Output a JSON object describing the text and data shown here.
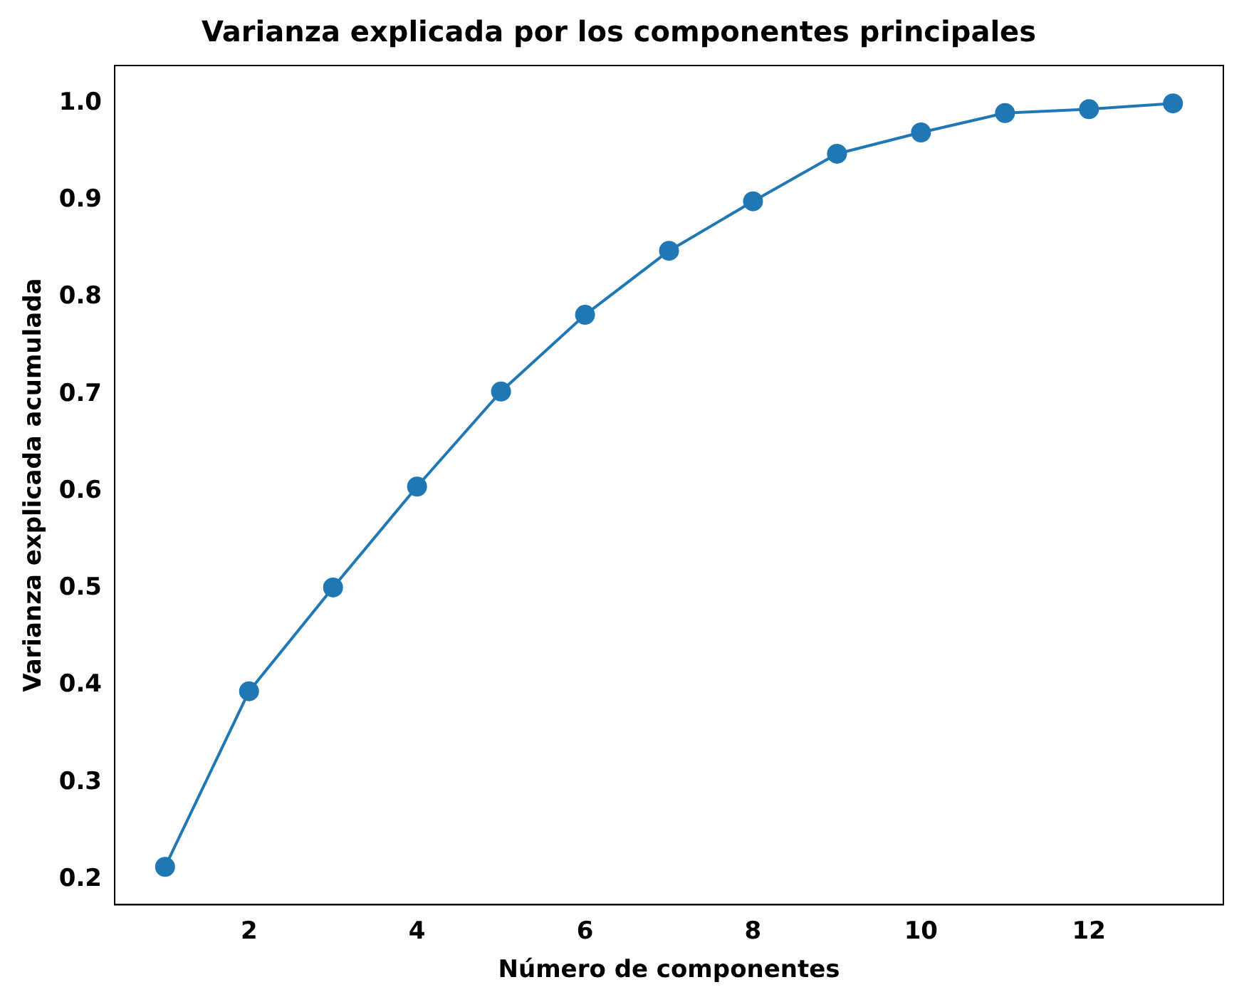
{
  "chart_data": {
    "type": "line",
    "title": "Varianza explicada por los componentes principales",
    "xlabel": "Número de componentes",
    "ylabel": "Varianza explicada acumulada",
    "x": [
      1,
      2,
      3,
      4,
      5,
      6,
      7,
      8,
      9,
      10,
      11,
      12,
      13
    ],
    "series": [
      {
        "color": "#1f77b4",
        "values": [
          0.213,
          0.394,
          0.501,
          0.605,
          0.703,
          0.782,
          0.848,
          0.899,
          0.948,
          0.97,
          0.99,
          0.994,
          1.0
        ]
      }
    ],
    "xlim": [
      0.4,
      13.6
    ],
    "xticks": [
      2,
      4,
      6,
      8,
      10,
      12
    ],
    "ylim": [
      0.174,
      1.039
    ],
    "yticks": [
      {
        "value": 0.2,
        "label": "0.2"
      },
      {
        "value": 0.3,
        "label": "0.3"
      },
      {
        "value": 0.4,
        "label": "0.4"
      },
      {
        "value": 0.5,
        "label": "0.5"
      },
      {
        "value": 0.6,
        "label": "0.6"
      },
      {
        "value": 0.7,
        "label": "0.7"
      },
      {
        "value": 0.8,
        "label": "0.8"
      },
      {
        "value": 0.9,
        "label": "0.9"
      },
      {
        "value": 1.0,
        "label": "1.0"
      }
    ],
    "grid": false,
    "legend": false,
    "marker": "circle",
    "line_style": "solid"
  }
}
